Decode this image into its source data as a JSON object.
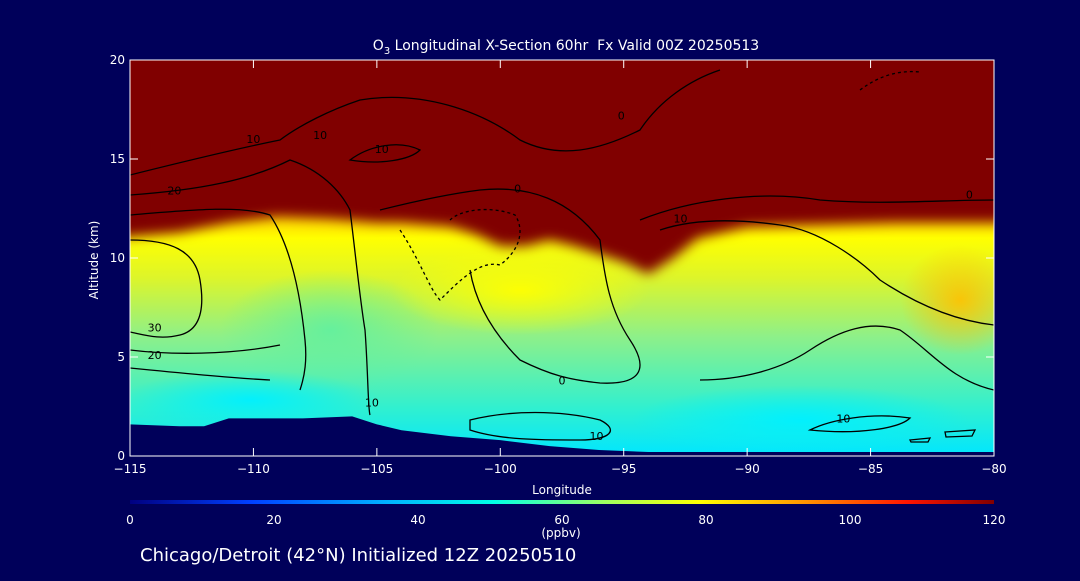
{
  "chart_data": {
    "type": "heatmap",
    "title": "O3 Longitudinal X-Section 60hr  Fx Valid 00Z 20250513",
    "title_parts": {
      "species": "O",
      "subscript": "3",
      "rest": " Longitudinal X-Section 60hr  Fx Valid 00Z 20250513"
    },
    "xlabel": "Longitude",
    "ylabel": "Altitude (km)",
    "xlim": [
      -115,
      -80
    ],
    "ylim": [
      0,
      20
    ],
    "x_ticks": [
      -115,
      -110,
      -105,
      -100,
      -95,
      -90,
      -85,
      -80
    ],
    "x_tick_labels": [
      "−115",
      "−110",
      "−105",
      "−100",
      "−95",
      "−90",
      "−85",
      "−80"
    ],
    "y_ticks": [
      0,
      5,
      10,
      15,
      20
    ],
    "y_tick_labels": [
      "0",
      "5",
      "10",
      "15",
      "20"
    ],
    "colorbar": {
      "min": 0,
      "max": 120,
      "ticks": [
        0,
        20,
        40,
        60,
        80,
        100,
        120
      ],
      "tick_labels": [
        "0",
        "20",
        "40",
        "60",
        "80",
        "100",
        "120"
      ],
      "unit": "(ppbv)",
      "colors": [
        "#000080",
        "#0050ff",
        "#00c8ff",
        "#33ffbb",
        "#ffff00",
        "#ff9a00",
        "#ff1800",
        "#800000"
      ]
    },
    "tropopause_km": [
      [
        -115,
        11.0
      ],
      [
        -113,
        11.3
      ],
      [
        -111,
        11.8
      ],
      [
        -109,
        12.1
      ],
      [
        -107,
        12.0
      ],
      [
        -105,
        11.8
      ],
      [
        -104,
        11.8
      ],
      [
        -103,
        11.7
      ],
      [
        -102,
        11.6
      ],
      [
        -101,
        11.2
      ],
      [
        -100,
        10.6
      ],
      [
        -99,
        10.6
      ],
      [
        -98,
        10.9
      ],
      [
        -97,
        10.6
      ],
      [
        -96,
        10.2
      ],
      [
        -95,
        9.8
      ],
      [
        -94,
        9.2
      ],
      [
        -93,
        10.0
      ],
      [
        -92,
        11.0
      ],
      [
        -90,
        11.6
      ],
      [
        -87,
        11.7
      ],
      [
        -84,
        11.8
      ],
      [
        -80,
        11.8
      ]
    ],
    "terrain_km": [
      [
        -115,
        1.6
      ],
      [
        -113,
        1.5
      ],
      [
        -112,
        1.5
      ],
      [
        -111,
        1.9
      ],
      [
        -108,
        1.9
      ],
      [
        -106,
        2.0
      ],
      [
        -105,
        1.6
      ],
      [
        -104,
        1.3
      ],
      [
        -102,
        1.0
      ],
      [
        -100,
        0.8
      ],
      [
        -98,
        0.5
      ],
      [
        -96,
        0.3
      ],
      [
        -94,
        0.2
      ],
      [
        -80,
        0.2
      ]
    ],
    "contour_labels": [
      {
        "text": "10",
        "x": -110,
        "y": 15.8
      },
      {
        "text": "10",
        "x": -107.3,
        "y": 16.0
      },
      {
        "text": "10",
        "x": -104.8,
        "y": 15.3
      },
      {
        "text": "0",
        "x": -99.3,
        "y": 13.3
      },
      {
        "text": "0",
        "x": -95.1,
        "y": 17.0
      },
      {
        "text": "0",
        "x": -81,
        "y": 13.0
      },
      {
        "text": "20",
        "x": -113.2,
        "y": 13.2
      },
      {
        "text": "10",
        "x": -92.7,
        "y": 11.8
      },
      {
        "text": "30",
        "x": -114.0,
        "y": 6.3
      },
      {
        "text": "20",
        "x": -114.0,
        "y": 4.9
      },
      {
        "text": "10",
        "x": -105.2,
        "y": 2.5
      },
      {
        "text": "0",
        "x": -97.5,
        "y": 3.6
      },
      {
        "text": "10",
        "x": -96.1,
        "y": 0.8
      },
      {
        "text": "10",
        "x": -86.1,
        "y": 1.7
      }
    ]
  },
  "footer": {
    "location_text": "Chicago/Detroit (42°N) Initialized 12Z 20250510"
  }
}
